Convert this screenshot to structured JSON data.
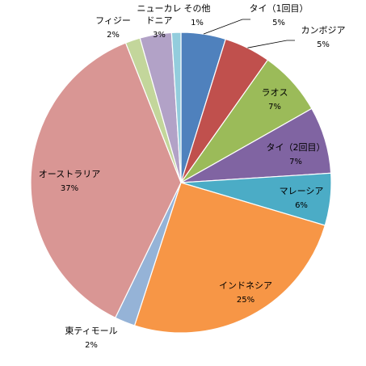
{
  "chart_data": {
    "type": "pie",
    "title": "",
    "start_angle_deg": 0,
    "direction": "clockwise",
    "slices": [
      {
        "label": "タイ（1回目）",
        "lines": [
          "タイ（1回目）"
        ],
        "pct_text": "5%",
        "value": 4.8,
        "color": "#4f81bd"
      },
      {
        "label": "カンボジア",
        "lines": [
          "カンボジア"
        ],
        "pct_text": "5%",
        "value": 5.0,
        "color": "#c0504d"
      },
      {
        "label": "ラオス",
        "lines": [
          "ラオス"
        ],
        "pct_text": "7%",
        "value": 7.0,
        "color": "#9bbb59"
      },
      {
        "label": "タイ（2回目）",
        "lines": [
          "タイ（2回目）"
        ],
        "pct_text": "7%",
        "value": 7.2,
        "color": "#8064a2"
      },
      {
        "label": "マレーシア",
        "lines": [
          "マレーシア"
        ],
        "pct_text": "6%",
        "value": 5.6,
        "color": "#4bacc6"
      },
      {
        "label": "インドネシア",
        "lines": [
          "インドネシア"
        ],
        "pct_text": "25%",
        "value": 25.4,
        "color": "#f79646"
      },
      {
        "label": "東ティモール",
        "lines": [
          "東ティモール"
        ],
        "pct_text": "2%",
        "value": 2.2,
        "color": "#95b3d7"
      },
      {
        "label": "オーストラリア",
        "lines": [
          "オーストラリア"
        ],
        "pct_text": "37%",
        "value": 36.8,
        "color": "#d99694"
      },
      {
        "label": "フィジー",
        "lines": [
          "フィジー"
        ],
        "pct_text": "2%",
        "value": 1.6,
        "color": "#c3d69b"
      },
      {
        "label": "ニューカレドニア",
        "lines": [
          "ニューカレ",
          "ドニア"
        ],
        "pct_text": "3%",
        "value": 3.4,
        "color": "#b2a2c7"
      },
      {
        "label": "その他",
        "lines": [
          "その他"
        ],
        "pct_text": "1%",
        "value": 1.0,
        "color": "#93cddd"
      }
    ]
  }
}
